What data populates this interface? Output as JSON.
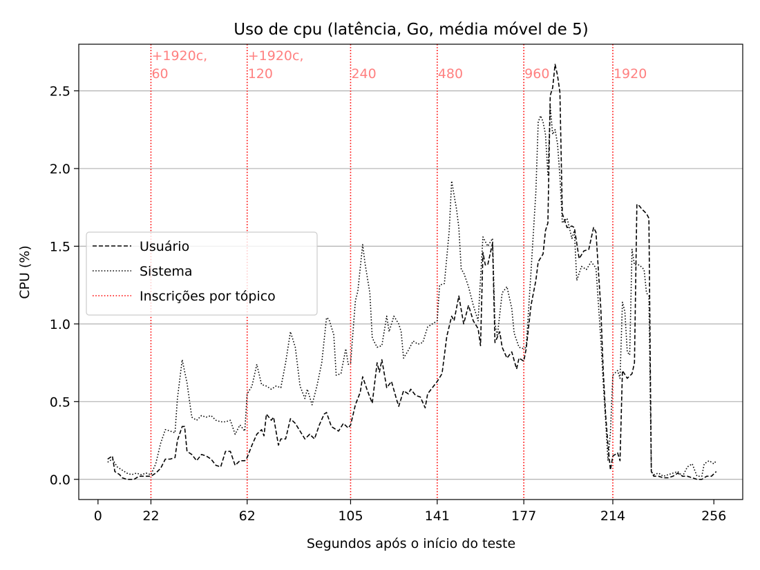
{
  "chart_data": {
    "type": "line",
    "title": "Uso de cpu (latência, Go, média móvel de 5)",
    "xlabel": "Segundos após o início do teste",
    "ylabel": "CPU (%)",
    "xlim": [
      -8,
      268
    ],
    "ylim": [
      -0.13,
      2.8
    ],
    "x_ticks": [
      0,
      22,
      62,
      105,
      141,
      177,
      214,
      256
    ],
    "y_ticks": [
      0.0,
      0.5,
      1.0,
      1.5,
      2.0,
      2.5
    ],
    "y_tick_labels": [
      "0.0",
      "0.5",
      "1.0",
      "1.5",
      "2.0",
      "2.5"
    ],
    "grid": "horizontal",
    "legend_position": "center-left",
    "colors": {
      "usuario": "#000000",
      "sistema": "#000000",
      "inscricoes": "#ff0000",
      "annotation_text": "#ff8080"
    },
    "series": [
      {
        "name": "Usuário",
        "style": "dashed",
        "points": [
          [
            4,
            0.13
          ],
          [
            6,
            0.15
          ],
          [
            7,
            0.05
          ],
          [
            9,
            0.03
          ],
          [
            10,
            0.01
          ],
          [
            12,
            0.0
          ],
          [
            15,
            0.0
          ],
          [
            17,
            0.02
          ],
          [
            20,
            0.02
          ],
          [
            22,
            0.02
          ],
          [
            24,
            0.04
          ],
          [
            26,
            0.07
          ],
          [
            28,
            0.13
          ],
          [
            30,
            0.13
          ],
          [
            32,
            0.14
          ],
          [
            33,
            0.25
          ],
          [
            35,
            0.34
          ],
          [
            36,
            0.34
          ],
          [
            37,
            0.18
          ],
          [
            39,
            0.16
          ],
          [
            41,
            0.12
          ],
          [
            43,
            0.16
          ],
          [
            45,
            0.15
          ],
          [
            47,
            0.13
          ],
          [
            49,
            0.09
          ],
          [
            51,
            0.08
          ],
          [
            53,
            0.18
          ],
          [
            55,
            0.18
          ],
          [
            57,
            0.09
          ],
          [
            59,
            0.12
          ],
          [
            61,
            0.12
          ],
          [
            62,
            0.14
          ],
          [
            64,
            0.22
          ],
          [
            66,
            0.29
          ],
          [
            68,
            0.32
          ],
          [
            69,
            0.28
          ],
          [
            70,
            0.42
          ],
          [
            72,
            0.38
          ],
          [
            73,
            0.4
          ],
          [
            75,
            0.22
          ],
          [
            76,
            0.26
          ],
          [
            78,
            0.26
          ],
          [
            80,
            0.39
          ],
          [
            82,
            0.36
          ],
          [
            84,
            0.31
          ],
          [
            86,
            0.26
          ],
          [
            88,
            0.29
          ],
          [
            90,
            0.26
          ],
          [
            92,
            0.35
          ],
          [
            94,
            0.42
          ],
          [
            95,
            0.43
          ],
          [
            97,
            0.34
          ],
          [
            99,
            0.32
          ],
          [
            100,
            0.31
          ],
          [
            102,
            0.36
          ],
          [
            104,
            0.33
          ],
          [
            105,
            0.35
          ],
          [
            107,
            0.48
          ],
          [
            109,
            0.56
          ],
          [
            110,
            0.66
          ],
          [
            112,
            0.57
          ],
          [
            114,
            0.49
          ],
          [
            116,
            0.75
          ],
          [
            117,
            0.69
          ],
          [
            118,
            0.77
          ],
          [
            120,
            0.59
          ],
          [
            122,
            0.63
          ],
          [
            124,
            0.52
          ],
          [
            125,
            0.47
          ],
          [
            127,
            0.57
          ],
          [
            129,
            0.55
          ],
          [
            130,
            0.58
          ],
          [
            132,
            0.54
          ],
          [
            134,
            0.53
          ],
          [
            136,
            0.46
          ],
          [
            137,
            0.55
          ],
          [
            139,
            0.59
          ],
          [
            141,
            0.63
          ],
          [
            143,
            0.68
          ],
          [
            145,
            0.92
          ],
          [
            147,
            1.05
          ],
          [
            148,
            1.02
          ],
          [
            150,
            1.18
          ],
          [
            152,
            1.0
          ],
          [
            154,
            1.12
          ],
          [
            156,
            1.02
          ],
          [
            158,
            0.97
          ],
          [
            159,
            0.86
          ],
          [
            160,
            1.46
          ],
          [
            161,
            1.38
          ],
          [
            162,
            1.38
          ],
          [
            164,
            1.52
          ],
          [
            165,
            0.88
          ],
          [
            167,
            0.95
          ],
          [
            168,
            0.85
          ],
          [
            170,
            0.78
          ],
          [
            172,
            0.82
          ],
          [
            174,
            0.71
          ],
          [
            175,
            0.78
          ],
          [
            177,
            0.76
          ],
          [
            178,
            0.84
          ],
          [
            180,
            1.12
          ],
          [
            182,
            1.28
          ],
          [
            183,
            1.4
          ],
          [
            185,
            1.45
          ],
          [
            186,
            1.6
          ],
          [
            187,
            1.65
          ],
          [
            188,
            2.47
          ],
          [
            189,
            2.52
          ],
          [
            190,
            2.67
          ],
          [
            191,
            2.6
          ],
          [
            192,
            2.49
          ],
          [
            193,
            1.71
          ],
          [
            195,
            1.62
          ],
          [
            197,
            1.63
          ],
          [
            198,
            1.62
          ],
          [
            200,
            1.42
          ],
          [
            202,
            1.47
          ],
          [
            204,
            1.48
          ],
          [
            206,
            1.62
          ],
          [
            207,
            1.59
          ],
          [
            209,
            1.1
          ],
          [
            210,
            0.7
          ],
          [
            211,
            0.42
          ],
          [
            212,
            0.22
          ],
          [
            213,
            0.06
          ],
          [
            214,
            0.15
          ],
          [
            216,
            0.17
          ],
          [
            217,
            0.12
          ],
          [
            218,
            0.7
          ],
          [
            220,
            0.65
          ],
          [
            222,
            0.68
          ],
          [
            223,
            0.75
          ],
          [
            224,
            1.77
          ],
          [
            225,
            1.76
          ],
          [
            226,
            1.74
          ],
          [
            228,
            1.71
          ],
          [
            229,
            1.68
          ],
          [
            230,
            0.05
          ],
          [
            231,
            0.02
          ],
          [
            233,
            0.02
          ],
          [
            235,
            0.01
          ],
          [
            237,
            0.01
          ],
          [
            239,
            0.02
          ],
          [
            241,
            0.04
          ],
          [
            243,
            0.02
          ],
          [
            245,
            0.02
          ],
          [
            247,
            0.01
          ],
          [
            249,
            0.0
          ],
          [
            251,
            0.0
          ],
          [
            253,
            0.02
          ],
          [
            255,
            0.02
          ],
          [
            257,
            0.05
          ]
        ]
      },
      {
        "name": "Sistema",
        "style": "dotted",
        "points": [
          [
            4,
            0.11
          ],
          [
            6,
            0.13
          ],
          [
            8,
            0.08
          ],
          [
            10,
            0.06
          ],
          [
            12,
            0.04
          ],
          [
            14,
            0.03
          ],
          [
            16,
            0.04
          ],
          [
            18,
            0.03
          ],
          [
            20,
            0.04
          ],
          [
            22,
            0.03
          ],
          [
            24,
            0.1
          ],
          [
            26,
            0.23
          ],
          [
            28,
            0.32
          ],
          [
            30,
            0.31
          ],
          [
            32,
            0.3
          ],
          [
            33,
            0.52
          ],
          [
            35,
            0.77
          ],
          [
            37,
            0.62
          ],
          [
            39,
            0.4
          ],
          [
            41,
            0.38
          ],
          [
            43,
            0.41
          ],
          [
            45,
            0.4
          ],
          [
            47,
            0.41
          ],
          [
            49,
            0.38
          ],
          [
            51,
            0.37
          ],
          [
            53,
            0.37
          ],
          [
            55,
            0.38
          ],
          [
            57,
            0.29
          ],
          [
            59,
            0.35
          ],
          [
            61,
            0.31
          ],
          [
            62,
            0.55
          ],
          [
            64,
            0.6
          ],
          [
            66,
            0.74
          ],
          [
            68,
            0.61
          ],
          [
            70,
            0.6
          ],
          [
            72,
            0.58
          ],
          [
            74,
            0.6
          ],
          [
            76,
            0.59
          ],
          [
            78,
            0.75
          ],
          [
            80,
            0.95
          ],
          [
            82,
            0.85
          ],
          [
            84,
            0.6
          ],
          [
            86,
            0.52
          ],
          [
            87,
            0.58
          ],
          [
            89,
            0.48
          ],
          [
            91,
            0.6
          ],
          [
            93,
            0.75
          ],
          [
            95,
            1.04
          ],
          [
            96,
            1.03
          ],
          [
            98,
            0.93
          ],
          [
            99,
            0.67
          ],
          [
            101,
            0.68
          ],
          [
            103,
            0.84
          ],
          [
            104,
            0.74
          ],
          [
            105,
            0.75
          ],
          [
            107,
            1.15
          ],
          [
            108,
            1.21
          ],
          [
            110,
            1.51
          ],
          [
            111,
            1.39
          ],
          [
            113,
            1.2
          ],
          [
            114,
            0.91
          ],
          [
            116,
            0.85
          ],
          [
            118,
            0.86
          ],
          [
            120,
            1.05
          ],
          [
            121,
            0.95
          ],
          [
            123,
            1.05
          ],
          [
            125,
            1.0
          ],
          [
            126,
            0.95
          ],
          [
            127,
            0.78
          ],
          [
            129,
            0.83
          ],
          [
            131,
            0.89
          ],
          [
            133,
            0.87
          ],
          [
            135,
            0.88
          ],
          [
            137,
            0.98
          ],
          [
            139,
            1.0
          ],
          [
            141,
            1.02
          ],
          [
            142,
            1.25
          ],
          [
            144,
            1.26
          ],
          [
            146,
            1.6
          ],
          [
            147,
            1.92
          ],
          [
            149,
            1.74
          ],
          [
            150,
            1.62
          ],
          [
            151,
            1.35
          ],
          [
            152,
            1.33
          ],
          [
            154,
            1.24
          ],
          [
            156,
            1.12
          ],
          [
            158,
            1.02
          ],
          [
            160,
            1.56
          ],
          [
            162,
            1.5
          ],
          [
            164,
            1.55
          ],
          [
            165,
            1.0
          ],
          [
            166,
            0.92
          ],
          [
            168,
            1.2
          ],
          [
            170,
            1.24
          ],
          [
            172,
            1.1
          ],
          [
            173,
            0.94
          ],
          [
            175,
            0.85
          ],
          [
            177,
            0.84
          ],
          [
            178,
            0.85
          ],
          [
            180,
            1.34
          ],
          [
            182,
            1.85
          ],
          [
            183,
            2.3
          ],
          [
            184,
            2.34
          ],
          [
            185,
            2.3
          ],
          [
            186,
            2.22
          ],
          [
            187,
            1.96
          ],
          [
            188,
            2.4
          ],
          [
            189,
            2.22
          ],
          [
            190,
            2.25
          ],
          [
            191,
            2.16
          ],
          [
            192,
            1.95
          ],
          [
            193,
            1.65
          ],
          [
            195,
            1.68
          ],
          [
            197,
            1.55
          ],
          [
            198,
            1.6
          ],
          [
            199,
            1.28
          ],
          [
            201,
            1.37
          ],
          [
            203,
            1.35
          ],
          [
            205,
            1.4
          ],
          [
            207,
            1.36
          ],
          [
            209,
            0.9
          ],
          [
            210,
            0.62
          ],
          [
            211,
            0.38
          ],
          [
            212,
            0.12
          ],
          [
            213,
            0.3
          ],
          [
            214,
            0.67
          ],
          [
            216,
            0.7
          ],
          [
            217,
            0.65
          ],
          [
            218,
            1.14
          ],
          [
            219,
            1.08
          ],
          [
            220,
            0.82
          ],
          [
            221,
            0.8
          ],
          [
            222,
            1.48
          ],
          [
            223,
            1.38
          ],
          [
            225,
            1.38
          ],
          [
            227,
            1.35
          ],
          [
            228,
            1.2
          ],
          [
            229,
            1.18
          ],
          [
            230,
            0.05
          ],
          [
            231,
            0.03
          ],
          [
            233,
            0.04
          ],
          [
            235,
            0.02
          ],
          [
            237,
            0.03
          ],
          [
            239,
            0.04
          ],
          [
            241,
            0.05
          ],
          [
            243,
            0.02
          ],
          [
            245,
            0.08
          ],
          [
            247,
            0.1
          ],
          [
            249,
            0.02
          ],
          [
            251,
            0.02
          ],
          [
            252,
            0.1
          ],
          [
            254,
            0.12
          ],
          [
            256,
            0.1
          ],
          [
            257,
            0.12
          ]
        ]
      }
    ],
    "vertical_lines": {
      "name": "Inscrições por tópico",
      "style": "dotted",
      "lines": [
        {
          "x": 22,
          "label_lines": [
            "+1920c,",
            "60"
          ]
        },
        {
          "x": 62,
          "label_lines": [
            "+1920c,",
            "120"
          ]
        },
        {
          "x": 105,
          "label_lines": [
            "240"
          ]
        },
        {
          "x": 141,
          "label_lines": [
            "480"
          ]
        },
        {
          "x": 177,
          "label_lines": [
            "960"
          ]
        },
        {
          "x": 214,
          "label_lines": [
            "1920"
          ]
        }
      ]
    },
    "legend": [
      "Usuário",
      "Sistema",
      "Inscrições por tópico"
    ]
  }
}
